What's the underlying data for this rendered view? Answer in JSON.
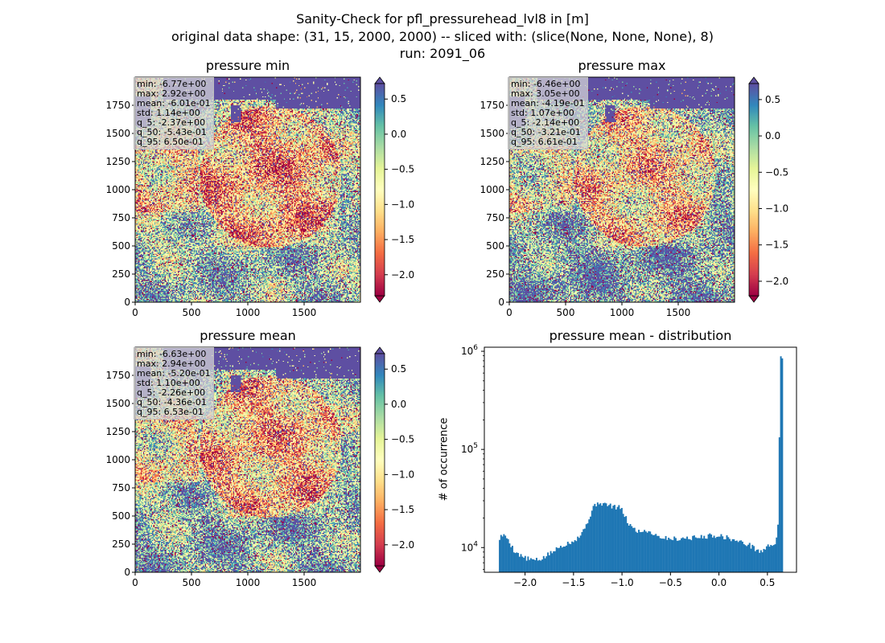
{
  "figure": {
    "title_lines": [
      "Sanity-Check for pfl_pressurehead_lvl8 in [m]",
      "original data shape: (31, 15, 2000, 2000) -- sliced with: (slice(None, None, None), 8)",
      "run: 2091_06"
    ]
  },
  "colors": {
    "bar": "#1f77b4",
    "colormap_spectral": [
      "#9e0142",
      "#d53e4f",
      "#f46d43",
      "#fdae61",
      "#fee08b",
      "#ffffbf",
      "#e6f598",
      "#abdda4",
      "#66c2a5",
      "#3288bd",
      "#5e4fa2"
    ],
    "ocean": "#5e4fa2"
  },
  "chart_data": [
    {
      "type": "heatmap",
      "title": "pressure min",
      "xlim": [
        0,
        2000
      ],
      "ylim": [
        0,
        2000
      ],
      "xticks": [
        0,
        500,
        1000,
        1500
      ],
      "yticks": [
        0,
        250,
        500,
        750,
        1000,
        1250,
        1500,
        1750
      ],
      "colorbar": {
        "vmin": -2.3,
        "vmax": 0.72,
        "ticks": [
          0.5,
          0.0,
          -0.5,
          -1.0,
          -1.5,
          -2.0
        ],
        "tick_labels": [
          "0.5",
          "0.0",
          "−0.5",
          "−1.0",
          "−1.5",
          "−2.0"
        ]
      },
      "stats": [
        "min: -6.77e+00",
        "max: 2.92e+00",
        "mean: -6.01e-01",
        "std: 1.14e+00",
        "q_5: -2.37e+00",
        "q_50: -5.43e-01",
        "q_95: 6.50e-01"
      ]
    },
    {
      "type": "heatmap",
      "title": "pressure max",
      "xlim": [
        0,
        2000
      ],
      "ylim": [
        0,
        2000
      ],
      "xticks": [
        0,
        500,
        1000,
        1500
      ],
      "yticks": [
        0,
        250,
        500,
        750,
        1000,
        1250,
        1500,
        1750
      ],
      "colorbar": {
        "vmin": -2.2,
        "vmax": 0.72,
        "ticks": [
          0.5,
          0.0,
          -0.5,
          -1.0,
          -1.5,
          -2.0
        ],
        "tick_labels": [
          "0.5",
          "0.0",
          "−0.5",
          "−1.0",
          "−1.5",
          "−2.0"
        ]
      },
      "stats": [
        "min: -6.46e+00",
        "max: 3.05e+00",
        "mean: -4.19e-01",
        "std: 1.07e+00",
        "q_5: -2.14e+00",
        "q_50: -3.21e-01",
        "q_95: 6.61e-01"
      ]
    },
    {
      "type": "heatmap",
      "title": "pressure mean",
      "xlim": [
        0,
        2000
      ],
      "ylim": [
        0,
        2000
      ],
      "xticks": [
        0,
        500,
        1000,
        1500
      ],
      "yticks": [
        0,
        250,
        500,
        750,
        1000,
        1250,
        1500,
        1750
      ],
      "colorbar": {
        "vmin": -2.3,
        "vmax": 0.72,
        "ticks": [
          0.5,
          0.0,
          -0.5,
          -1.0,
          -1.5,
          -2.0
        ],
        "tick_labels": [
          "0.5",
          "0.0",
          "−0.5",
          "−1.0",
          "−1.5",
          "−2.0"
        ]
      },
      "stats": [
        "min: -6.63e+00",
        "max: 2.94e+00",
        "mean: -5.20e-01",
        "std: 1.10e+00",
        "q_5: -2.26e+00",
        "q_50: -4.36e-01",
        "q_95: 6.53e-01"
      ]
    },
    {
      "type": "bar",
      "title": "pressure mean - distribution",
      "ylabel": "# of occurrence",
      "xlabel": "",
      "yscale": "log",
      "ylim": [
        5600,
        1100000
      ],
      "xlim": [
        -2.42,
        0.8
      ],
      "xticks": [
        -2.0,
        -1.5,
        -1.0,
        -0.5,
        0.0,
        0.5
      ],
      "xtick_labels": [
        "−2.0",
        "−1.5",
        "−1.0",
        "−0.5",
        "0.0",
        "0.5"
      ],
      "yticks": [
        10000,
        100000,
        1000000
      ],
      "bin_range": [
        -2.27,
        0.66
      ],
      "bins": 200,
      "profile_points": [
        [
          -2.27,
          12000
        ],
        [
          -2.24,
          13500
        ],
        [
          -2.18,
          12500
        ],
        [
          -2.12,
          9500
        ],
        [
          -2.05,
          8300
        ],
        [
          -1.98,
          7700
        ],
        [
          -1.92,
          7500
        ],
        [
          -1.86,
          7400
        ],
        [
          -1.8,
          8000
        ],
        [
          -1.72,
          9000
        ],
        [
          -1.62,
          10500
        ],
        [
          -1.52,
          11500
        ],
        [
          -1.44,
          13000
        ],
        [
          -1.38,
          16000
        ],
        [
          -1.34,
          20000
        ],
        [
          -1.3,
          25000
        ],
        [
          -1.25,
          29000
        ],
        [
          -1.2,
          28000
        ],
        [
          -1.14,
          27000
        ],
        [
          -1.08,
          26000
        ],
        [
          -1.02,
          25500
        ],
        [
          -0.98,
          22000
        ],
        [
          -0.94,
          18000
        ],
        [
          -0.88,
          15500
        ],
        [
          -0.82,
          14500
        ],
        [
          -0.75,
          15000
        ],
        [
          -0.68,
          14000
        ],
        [
          -0.62,
          13000
        ],
        [
          -0.55,
          12500
        ],
        [
          -0.45,
          12300
        ],
        [
          -0.35,
          12500
        ],
        [
          -0.2,
          12700
        ],
        [
          -0.1,
          13200
        ],
        [
          0.0,
          13300
        ],
        [
          0.1,
          12500
        ],
        [
          0.2,
          11500
        ],
        [
          0.28,
          11000
        ],
        [
          0.36,
          10000
        ],
        [
          0.42,
          9000
        ],
        [
          0.46,
          9500
        ],
        [
          0.52,
          10500
        ],
        [
          0.58,
          11000
        ],
        [
          0.61,
          16500
        ],
        [
          0.62,
          48000
        ],
        [
          0.63,
          850000
        ],
        [
          0.66,
          850000
        ]
      ]
    }
  ]
}
